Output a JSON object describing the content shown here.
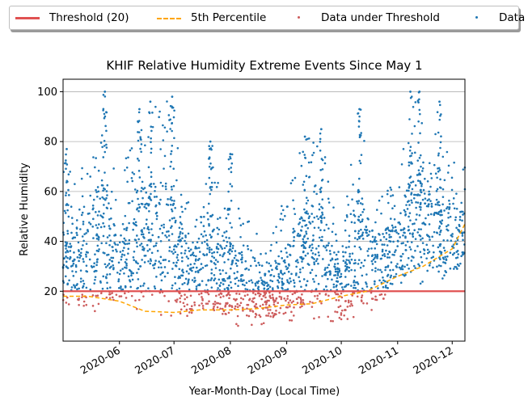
{
  "legend": {
    "items": [
      {
        "label": "Threshold (20)",
        "style": "line",
        "color": "#e05252"
      },
      {
        "label": "5th Percentile",
        "style": "dashed",
        "color": "#ffa500"
      },
      {
        "label": "Data under Threshold",
        "style": "dot",
        "color": "#cd5c5c"
      },
      {
        "label": "Data",
        "style": "dot",
        "color": "#1f77b4"
      }
    ]
  },
  "chart_data": {
    "type": "scatter",
    "title": "KHIF Relative Humidity Extreme Events Since May 1",
    "xlabel": "Year-Month-Day (Local Time)",
    "ylabel": "Relative Humidity",
    "x_type": "date",
    "xlim": [
      "2020-05-01",
      "2020-12-08"
    ],
    "ylim": [
      0,
      105
    ],
    "x_ticks": [
      "2020-06",
      "2020-07",
      "2020-08",
      "2020-09",
      "2020-10",
      "2020-11",
      "2020-12"
    ],
    "y_ticks": [
      20,
      40,
      60,
      80,
      100
    ],
    "grid": "horizontal",
    "legend_location": "top, above plot",
    "threshold": {
      "name": "Threshold (20)",
      "value": 20,
      "color": "#e05252"
    },
    "percentile_5th": {
      "name": "5th Percentile",
      "color": "#ffa500",
      "x": [
        "2020-05-01",
        "2020-05-15",
        "2020-06-01",
        "2020-06-15",
        "2020-07-01",
        "2020-07-15",
        "2020-08-01",
        "2020-08-15",
        "2020-09-01",
        "2020-09-15",
        "2020-10-01",
        "2020-10-15",
        "2020-11-01",
        "2020-11-15",
        "2020-12-01",
        "2020-12-08"
      ],
      "y": [
        18,
        18,
        16,
        12,
        11.5,
        12.5,
        12.5,
        13,
        14.5,
        15,
        18,
        20,
        26,
        30,
        37,
        47
      ]
    },
    "series": [
      {
        "name": "Data under Threshold",
        "color": "#cd5c5c",
        "note": "dense points below 20 %"
      },
      {
        "name": "Data",
        "color": "#1f77b4",
        "note": "dense points at or above 20 %"
      }
    ],
    "data_envelope": {
      "x": [
        "2020-05-01",
        "2020-05-10",
        "2020-05-22",
        "2020-06-01",
        "2020-06-10",
        "2020-06-20",
        "2020-07-01",
        "2020-07-10",
        "2020-07-20",
        "2020-08-01",
        "2020-08-10",
        "2020-08-20",
        "2020-09-01",
        "2020-09-10",
        "2020-09-20",
        "2020-10-01",
        "2020-10-10",
        "2020-10-20",
        "2020-11-01",
        "2020-11-10",
        "2020-11-20",
        "2020-12-01",
        "2020-12-08"
      ],
      "low": [
        10,
        10,
        11,
        12,
        10,
        9,
        9,
        8,
        7,
        6,
        6,
        7,
        7,
        8,
        8,
        8,
        9,
        12,
        22,
        22,
        25,
        22,
        30
      ],
      "high": [
        77,
        65,
        100,
        60,
        93,
        96,
        98,
        50,
        80,
        60,
        50,
        40,
        60,
        82,
        85,
        40,
        93,
        60,
        65,
        100,
        86,
        75,
        74
      ]
    },
    "peaks": [
      {
        "x": "2020-05-03",
        "y": 77
      },
      {
        "x": "2020-05-24",
        "y": 100
      },
      {
        "x": "2020-06-12",
        "y": 93
      },
      {
        "x": "2020-06-18",
        "y": 96
      },
      {
        "x": "2020-06-30",
        "y": 98
      },
      {
        "x": "2020-07-21",
        "y": 80
      },
      {
        "x": "2020-08-01",
        "y": 75
      },
      {
        "x": "2020-09-11",
        "y": 82
      },
      {
        "x": "2020-09-20",
        "y": 85
      },
      {
        "x": "2020-10-11",
        "y": 93
      },
      {
        "x": "2020-11-08",
        "y": 100
      },
      {
        "x": "2020-11-13",
        "y": 100
      },
      {
        "x": "2020-11-24",
        "y": 96
      }
    ]
  }
}
